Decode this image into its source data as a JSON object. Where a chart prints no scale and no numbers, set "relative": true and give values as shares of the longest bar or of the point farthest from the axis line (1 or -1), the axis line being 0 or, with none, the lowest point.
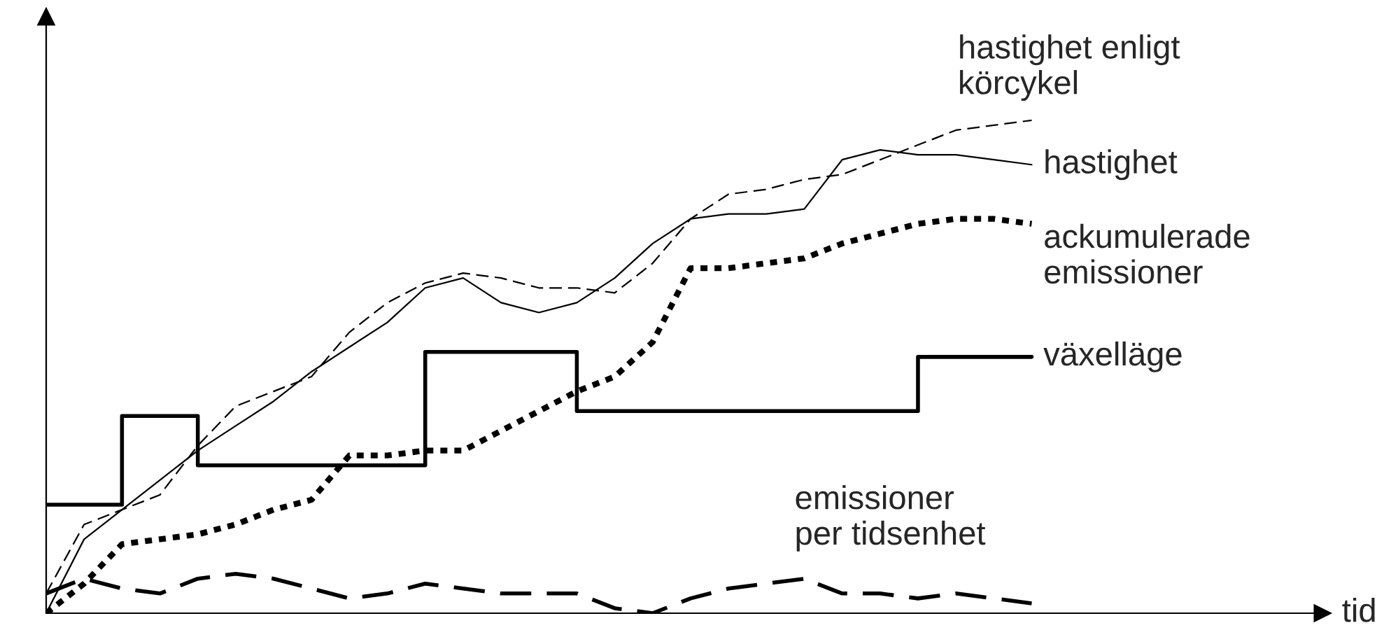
{
  "chart_data": {
    "type": "line",
    "relative": true,
    "annotations": [
      "tid"
    ],
    "categories": [
      null,
      null,
      null,
      null,
      null,
      null,
      null,
      null,
      null,
      null,
      null,
      null,
      null,
      null,
      null,
      null,
      null,
      null,
      null,
      null,
      null,
      null,
      null,
      null,
      null,
      null,
      null
    ],
    "series": [
      {
        "name": "hastighet enligt\nkörcykel",
        "color": "#000000",
        "line_style": "dashed",
        "values": [
          0.04,
          0.18,
          0.21,
          0.24,
          0.34,
          0.42,
          0.45,
          0.48,
          0.57,
          0.63,
          0.67,
          0.69,
          0.68,
          0.66,
          0.66,
          0.65,
          0.71,
          0.8,
          0.85,
          0.86,
          0.88,
          0.89,
          0.92,
          0.95,
          0.98,
          0.99,
          1
        ]
      },
      {
        "name": "hastighet",
        "color": "#000000",
        "line_style": "solid",
        "values": [
          0,
          0.15,
          0.21,
          0.27,
          0.33,
          0.38,
          0.43,
          0.49,
          0.54,
          0.59,
          0.66,
          0.68,
          0.63,
          0.61,
          0.63,
          0.68,
          0.75,
          0.8,
          0.81,
          0.81,
          0.82,
          0.92,
          0.94,
          0.93,
          0.93,
          0.92,
          0.91
        ]
      },
      {
        "name": "ackumulerade\nemissioner",
        "color": "#000000",
        "line_style": "dotted",
        "values": [
          0,
          0.06,
          0.14,
          0.15,
          0.16,
          0.18,
          0.21,
          0.23,
          0.32,
          0.32,
          0.33,
          0.33,
          0.37,
          0.41,
          0.45,
          0.48,
          0.55,
          0.7,
          0.7,
          0.71,
          0.72,
          0.75,
          0.77,
          0.79,
          0.8,
          0.8,
          0.79
        ]
      },
      {
        "name": "växelläge",
        "type": "step",
        "color": "#000000",
        "line_style": "solid",
        "values": [
          0.22,
          0.22,
          0.4,
          0.4,
          0.3,
          0.3,
          0.3,
          0.3,
          0.3,
          0.3,
          0.53,
          0.53,
          0.53,
          0.53,
          0.41,
          0.41,
          0.41,
          0.41,
          0.41,
          0.41,
          0.41,
          0.41,
          0.41,
          0.52,
          0.52,
          0.52,
          0.52
        ]
      },
      {
        "name": "emissioner\nper tidsenhet",
        "color": "#000000",
        "line_style": "dashed",
        "values": [
          0.04,
          0.07,
          0.05,
          0.04,
          0.07,
          0.08,
          0.07,
          0.05,
          0.03,
          0.04,
          0.06,
          0.05,
          0.04,
          0.04,
          0.04,
          0.01,
          0,
          0.03,
          0.05,
          0.06,
          0.07,
          0.04,
          0.04,
          0.03,
          0.04,
          0.03,
          0.02
        ]
      }
    ]
  }
}
